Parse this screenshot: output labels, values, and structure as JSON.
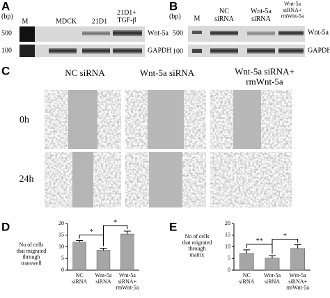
{
  "panel_a": {
    "label": "A",
    "unit": "(bp)",
    "lanes": [
      "M",
      "MDCK",
      "21D1",
      "21D1+\nTGF-β"
    ],
    "markers": [
      "500",
      "100"
    ],
    "bands": [
      "Wnt-5a",
      "GAPDH"
    ]
  },
  "panel_b": {
    "label": "B",
    "unit": "(bp)",
    "lanes": [
      "M",
      "NC\nsiRNA",
      "Wnt-5a\nsiRNA",
      "Wnt-5a\nsiRNA+\nrmWnt-5a"
    ],
    "markers": [
      "500",
      "100"
    ],
    "bands": [
      "Wnt-5a",
      "GAPDH"
    ]
  },
  "panel_c": {
    "label": "C",
    "columns": [
      "NC siRNA",
      "Wnt-5a siRNA",
      "Wnt-5a siRNA+\nrmWnt-5a"
    ],
    "rows": [
      "0h",
      "24h"
    ]
  },
  "chart_data": [
    {
      "type": "bar",
      "label": "D",
      "y_label": "No of cells\nthat migrated\nthrough\ntranswell",
      "categories": [
        "NC\nsiRNA",
        "Wnt-5a\nsiRNA",
        "Wnt-5a\nsiRNA+\nrmWnt-5a"
      ],
      "values": [
        12,
        8.5,
        15.5
      ],
      "errors": [
        0.7,
        0.9,
        1.2
      ],
      "color": "#a6a6a6",
      "ylim": [
        0,
        20
      ],
      "yticks": [
        0,
        5,
        10,
        15,
        20
      ],
      "annotations": [
        "*",
        "*"
      ]
    },
    {
      "type": "bar",
      "label": "E",
      "y_label": "No of cells\nthat migrated\nthrough\nmatrix",
      "categories": [
        "NC\nsiRNA",
        "Wnt-5a\nsiRNA",
        "Wnt-5a\nsiRNA+\nrmWnt-5a"
      ],
      "values": [
        7.2,
        5.2,
        9.3
      ],
      "errors": [
        1.5,
        1.0,
        1.6
      ],
      "color": "#a6a6a6",
      "ylim": [
        0,
        20
      ],
      "yticks": [
        0,
        5,
        10,
        15,
        20
      ],
      "annotations": [
        "**",
        "*"
      ]
    }
  ]
}
